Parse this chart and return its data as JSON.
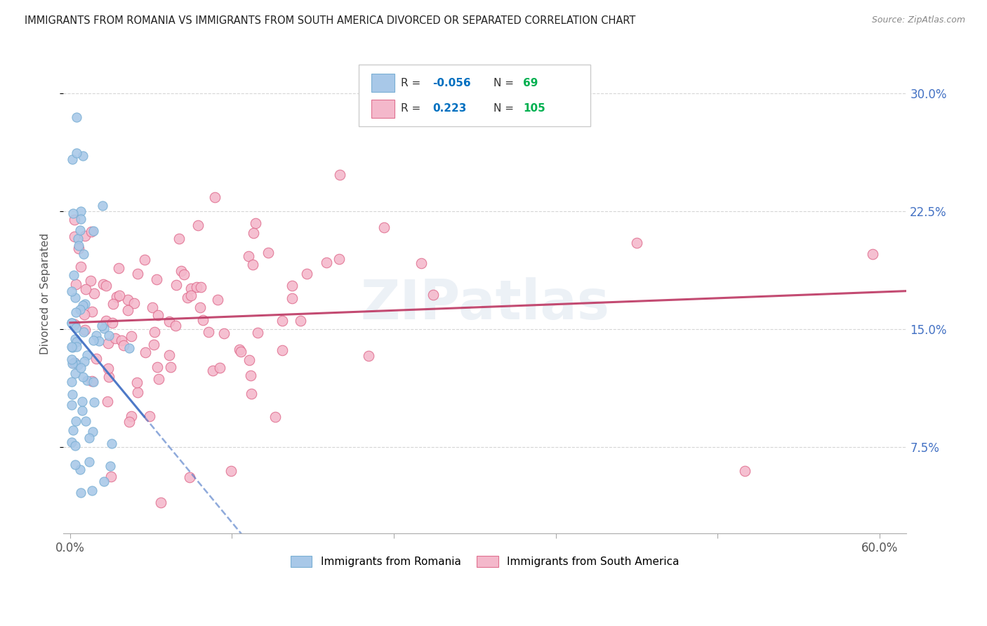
{
  "title": "IMMIGRANTS FROM ROMANIA VS IMMIGRANTS FROM SOUTH AMERICA DIVORCED OR SEPARATED CORRELATION CHART",
  "source": "Source: ZipAtlas.com",
  "ylabel": "Divorced or Separated",
  "romania_color": "#a8c8e8",
  "romania_edge": "#7aafd4",
  "south_america_color": "#f4b8cb",
  "south_america_edge": "#e07090",
  "romania_line_color": "#4472c4",
  "south_america_line_color": "#c0416a",
  "romania_R": -0.056,
  "romania_N": 69,
  "south_america_R": 0.223,
  "south_america_N": 105,
  "legend_R_color": "#0070c0",
  "legend_N_color": "#00b050",
  "ytick_color": "#4472c4",
  "ylim_low": 0.02,
  "ylim_high": 0.325,
  "xlim_low": -0.005,
  "xlim_high": 0.62,
  "y_ticks": [
    0.075,
    0.15,
    0.225,
    0.3
  ],
  "y_tick_labels": [
    "7.5%",
    "15.0%",
    "22.5%",
    "30.0%"
  ],
  "x_ticks": [
    0.0,
    0.12,
    0.24,
    0.36,
    0.48,
    0.6
  ],
  "x_tick_labels": [
    "0.0%",
    "",
    "",
    "",
    "",
    "60.0%"
  ]
}
